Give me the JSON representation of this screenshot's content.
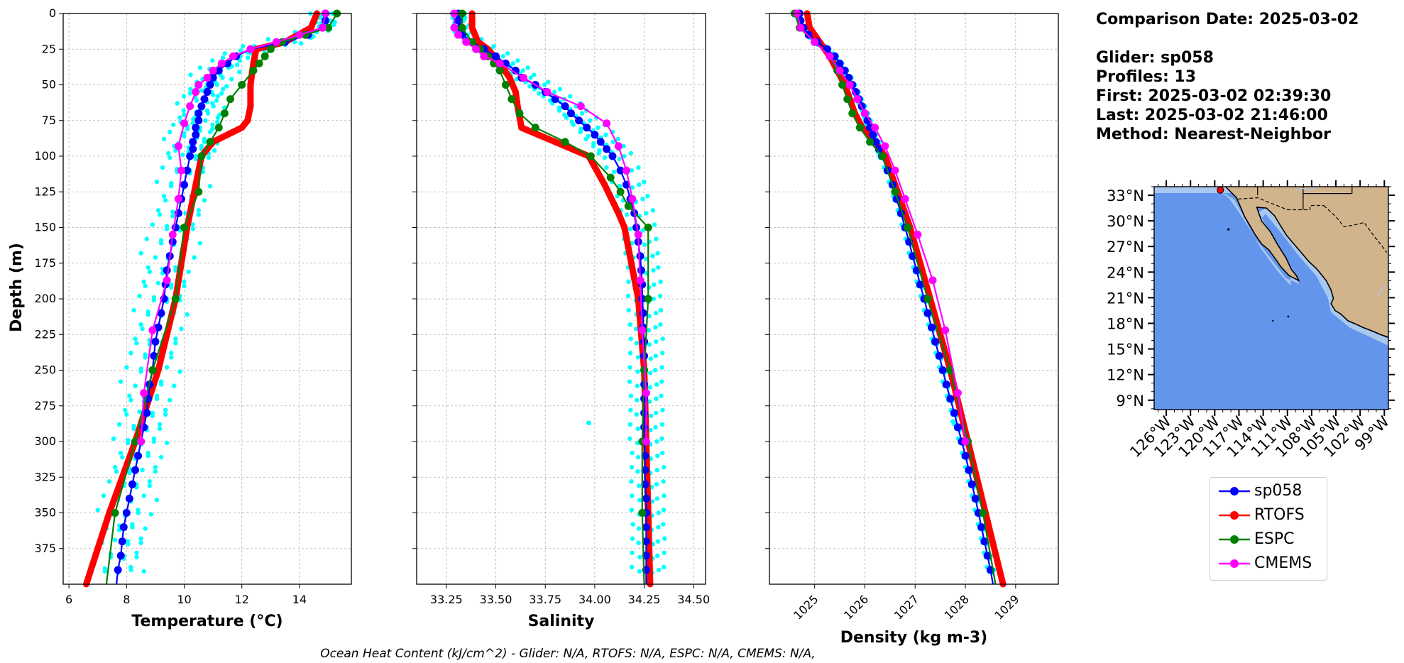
{
  "info": {
    "comparison_date": "Comparison Date: 2025-03-02",
    "glider": "Glider: sp058",
    "profiles": "Profiles: 13",
    "first": "First: 2025-03-02 02:39:30",
    "last": "Last: 2025-03-02 21:46:00",
    "method": "Method: Nearest-Neighbor"
  },
  "footer": "Ocean Heat Content (kJ/cm^2) - Glider: N/A,  RTOFS: N/A,  ESPC: N/A,  CMEMS: N/A,",
  "colors": {
    "glider": "#0000ff",
    "rtofs": "#ff0000",
    "espc": "#008000",
    "cmems": "#ff00ff",
    "raw": "#00ffff",
    "ocean": "#6495ed",
    "land": "#d2b48c",
    "shelf": "#a9c8ee"
  },
  "legend": [
    "sp058",
    "RTOFS",
    "ESPC",
    "CMEMS"
  ],
  "chart_data": [
    {
      "type": "line",
      "xlabel": "Temperature (°C)",
      "ylabel": "Depth (m)",
      "xlim": [
        5.8,
        15.8
      ],
      "ylim": [
        400,
        0
      ],
      "xticks": [
        6,
        8,
        10,
        12,
        14
      ],
      "xtick_labels": [
        "6",
        "8",
        "10",
        "12",
        "14"
      ],
      "yticks": [
        0,
        25,
        50,
        75,
        100,
        125,
        150,
        175,
        200,
        225,
        250,
        275,
        300,
        325,
        350,
        375
      ],
      "ytick_labels": [
        "0",
        "25",
        "50",
        "75",
        "100",
        "125",
        "150",
        "175",
        "200",
        "225",
        "250",
        "275",
        "300",
        "325",
        "350",
        "375"
      ],
      "series": [
        {
          "name": "RTOFS",
          "depth": [
            0,
            10,
            20,
            25,
            35,
            50,
            65,
            75,
            80,
            90,
            100,
            150,
            200,
            250,
            300,
            350,
            400
          ],
          "values": [
            14.6,
            14.4,
            13.5,
            12.5,
            12.4,
            12.3,
            12.3,
            12.2,
            12.0,
            11.0,
            10.6,
            10.1,
            9.7,
            9.1,
            8.3,
            7.4,
            6.6
          ]
        },
        {
          "name": "sp058",
          "depth": [
            0,
            5,
            10,
            15,
            20,
            25,
            30,
            35,
            40,
            45,
            50,
            55,
            60,
            65,
            70,
            75,
            80,
            85,
            90,
            95,
            100,
            110,
            120,
            130,
            140,
            150,
            160,
            170,
            180,
            190,
            200,
            210,
            220,
            230,
            240,
            250,
            260,
            270,
            280,
            290,
            300,
            310,
            320,
            330,
            340,
            350,
            360,
            370,
            380,
            390,
            400
          ],
          "values": [
            14.9,
            14.9,
            14.8,
            14.3,
            13.5,
            12.3,
            11.8,
            11.5,
            11.2,
            11.0,
            10.9,
            10.8,
            10.7,
            10.6,
            10.5,
            10.5,
            10.4,
            10.4,
            10.3,
            10.3,
            10.2,
            10.1,
            10.0,
            9.9,
            9.8,
            9.7,
            9.6,
            9.5,
            9.4,
            9.35,
            9.3,
            9.2,
            9.1,
            9.0,
            8.95,
            8.9,
            8.8,
            8.75,
            8.7,
            8.6,
            8.5,
            8.4,
            8.3,
            8.2,
            8.1,
            8.0,
            7.9,
            7.85,
            7.8,
            7.7,
            7.65
          ]
        },
        {
          "name": "ESPC",
          "depth": [
            0,
            10,
            15,
            20,
            25,
            30,
            35,
            40,
            50,
            60,
            70,
            80,
            90,
            100,
            125,
            150,
            200,
            250,
            300,
            350,
            400
          ],
          "values": [
            15.3,
            15.0,
            14.2,
            13.4,
            13.0,
            12.8,
            12.6,
            12.4,
            12.0,
            11.6,
            11.4,
            11.2,
            10.9,
            10.6,
            10.5,
            10.0,
            9.7,
            8.9,
            8.3,
            7.6,
            7.3
          ]
        },
        {
          "name": "CMEMS",
          "depth": [
            0,
            10,
            15,
            20,
            25,
            30,
            35,
            40,
            45,
            50,
            55,
            65,
            77,
            93,
            110,
            130,
            155,
            187,
            222,
            266,
            300
          ],
          "values": [
            14.9,
            14.8,
            14.0,
            13.2,
            12.3,
            11.7,
            11.3,
            11.0,
            10.8,
            10.5,
            10.4,
            10.2,
            10.0,
            9.8,
            9.9,
            9.8,
            9.6,
            9.4,
            8.9,
            8.6,
            8.5
          ]
        }
      ],
      "raw": {
        "name": "glider profiles",
        "offsets": [
          -0.8,
          -0.5,
          -0.25,
          0.0,
          0.25,
          0.5,
          0.75
        ]
      }
    },
    {
      "type": "line",
      "xlabel": "Salinity",
      "ylabel": "",
      "xlim": [
        33.1,
        34.56
      ],
      "ylim": [
        400,
        0
      ],
      "xticks": [
        33.25,
        33.5,
        33.75,
        34.0,
        34.25,
        34.5
      ],
      "xtick_labels": [
        "33.25",
        "33.50",
        "33.75",
        "34.00",
        "34.25",
        "34.50"
      ],
      "yticks": [
        0,
        25,
        50,
        75,
        100,
        125,
        150,
        175,
        200,
        225,
        250,
        275,
        300,
        325,
        350,
        375
      ],
      "series": [
        {
          "name": "RTOFS",
          "depth": [
            0,
            10,
            20,
            25,
            35,
            45,
            55,
            65,
            80,
            90,
            100,
            120,
            140,
            150,
            200,
            250,
            300,
            350,
            400
          ],
          "values": [
            33.38,
            33.38,
            33.41,
            33.46,
            33.52,
            33.57,
            33.6,
            33.61,
            33.63,
            33.8,
            33.97,
            34.05,
            34.12,
            34.15,
            34.22,
            34.25,
            34.26,
            34.27,
            34.28
          ]
        },
        {
          "name": "sp058",
          "depth": [
            0,
            5,
            10,
            15,
            20,
            25,
            30,
            35,
            40,
            45,
            50,
            55,
            60,
            65,
            70,
            75,
            80,
            85,
            90,
            95,
            100,
            110,
            120,
            130,
            140,
            150,
            160,
            170,
            180,
            190,
            200,
            210,
            220,
            230,
            240,
            250,
            260,
            270,
            280,
            290,
            300,
            310,
            320,
            330,
            340,
            350,
            360,
            370,
            380,
            390,
            400
          ],
          "values": [
            33.31,
            33.31,
            33.32,
            33.33,
            33.38,
            33.44,
            33.5,
            33.55,
            33.6,
            33.63,
            33.7,
            33.75,
            33.8,
            33.85,
            33.88,
            33.92,
            33.96,
            34.0,
            34.03,
            34.06,
            34.09,
            34.13,
            34.16,
            34.18,
            34.2,
            34.21,
            34.22,
            34.23,
            34.235,
            34.24,
            34.24,
            34.245,
            34.245,
            34.25,
            34.25,
            34.25,
            34.25,
            34.25,
            34.25,
            34.25,
            34.25,
            34.255,
            34.255,
            34.255,
            34.26,
            34.26,
            34.26,
            34.26,
            34.26,
            34.26,
            34.26
          ]
        },
        {
          "name": "ESPC",
          "depth": [
            0,
            10,
            20,
            25,
            30,
            35,
            40,
            50,
            60,
            70,
            80,
            90,
            100,
            115,
            125,
            135,
            150,
            200,
            250,
            300,
            350,
            400
          ],
          "values": [
            33.33,
            33.33,
            33.38,
            33.42,
            33.46,
            33.49,
            33.52,
            33.55,
            33.58,
            33.62,
            33.7,
            33.85,
            33.98,
            34.08,
            34.13,
            34.17,
            34.27,
            34.27,
            34.25,
            34.24,
            34.24,
            34.25
          ]
        },
        {
          "name": "CMEMS",
          "depth": [
            0,
            10,
            15,
            20,
            25,
            30,
            35,
            45,
            55,
            65,
            77,
            93,
            110,
            130,
            155,
            187,
            222,
            266,
            300
          ],
          "values": [
            33.29,
            33.29,
            33.31,
            33.35,
            33.4,
            33.44,
            33.52,
            33.64,
            33.76,
            33.93,
            34.06,
            34.12,
            34.16,
            34.19,
            34.22,
            34.23,
            34.24,
            34.26,
            34.26
          ]
        }
      ],
      "raw": {
        "name": "glider profiles",
        "offsets": [
          -0.07,
          -0.035,
          0.0,
          0.03,
          0.06,
          0.09
        ],
        "outlier": {
          "depth": 287,
          "value": 33.97
        }
      }
    },
    {
      "type": "line",
      "xlabel": "Density (kg m-3)",
      "ylabel": "",
      "xlim": [
        1024.1,
        1029.85
      ],
      "ylim": [
        400,
        0
      ],
      "xticks": [
        1025,
        1026,
        1027,
        1028,
        1029
      ],
      "xtick_labels": [
        "1025",
        "1026",
        "1027",
        "1028",
        "1029"
      ],
      "yticks": [
        0,
        25,
        50,
        75,
        100,
        125,
        150,
        175,
        200,
        225,
        250,
        275,
        300,
        325,
        350,
        375
      ],
      "series": [
        {
          "name": "RTOFS",
          "depth": [
            0,
            10,
            20,
            30,
            40,
            50,
            60,
            70,
            80,
            90,
            100,
            125,
            150,
            200,
            250,
            300,
            350,
            400
          ],
          "values": [
            1024.85,
            1024.9,
            1025.1,
            1025.3,
            1025.45,
            1025.6,
            1025.7,
            1025.8,
            1025.95,
            1026.2,
            1026.4,
            1026.65,
            1026.9,
            1027.3,
            1027.7,
            1028.05,
            1028.4,
            1028.75
          ]
        },
        {
          "name": "sp058",
          "depth": [
            0,
            5,
            10,
            15,
            20,
            25,
            30,
            35,
            40,
            45,
            50,
            55,
            60,
            65,
            70,
            75,
            80,
            85,
            90,
            95,
            100,
            110,
            120,
            130,
            140,
            150,
            160,
            170,
            180,
            190,
            200,
            210,
            220,
            230,
            240,
            250,
            260,
            270,
            280,
            290,
            300,
            310,
            320,
            330,
            340,
            350,
            360,
            370,
            380,
            390,
            400
          ],
          "values": [
            1024.7,
            1024.72,
            1024.78,
            1024.88,
            1025.05,
            1025.25,
            1025.4,
            1025.5,
            1025.6,
            1025.68,
            1025.75,
            1025.82,
            1025.88,
            1025.94,
            1026.0,
            1026.05,
            1026.1,
            1026.16,
            1026.22,
            1026.28,
            1026.34,
            1026.45,
            1026.55,
            1026.63,
            1026.72,
            1026.8,
            1026.88,
            1026.95,
            1027.03,
            1027.1,
            1027.18,
            1027.25,
            1027.33,
            1027.4,
            1027.48,
            1027.55,
            1027.62,
            1027.7,
            1027.78,
            1027.85,
            1027.93,
            1028.0,
            1028.07,
            1028.13,
            1028.2,
            1028.26,
            1028.32,
            1028.38,
            1028.44,
            1028.5,
            1028.55
          ]
        },
        {
          "name": "ESPC",
          "depth": [
            0,
            10,
            20,
            30,
            40,
            50,
            60,
            70,
            80,
            90,
            100,
            125,
            150,
            200,
            250,
            300,
            350,
            400
          ],
          "values": [
            1024.6,
            1024.7,
            1025.0,
            1025.3,
            1025.45,
            1025.55,
            1025.65,
            1025.75,
            1025.9,
            1026.1,
            1026.35,
            1026.6,
            1026.85,
            1027.25,
            1027.7,
            1028.05,
            1028.35,
            1028.6
          ]
        },
        {
          "name": "CMEMS",
          "depth": [
            0,
            10,
            20,
            30,
            40,
            50,
            60,
            70,
            80,
            93,
            110,
            130,
            155,
            187,
            222,
            266,
            300
          ],
          "values": [
            1024.65,
            1024.72,
            1025.0,
            1025.3,
            1025.5,
            1025.7,
            1025.85,
            1026.0,
            1026.2,
            1026.4,
            1026.6,
            1026.8,
            1027.05,
            1027.35,
            1027.6,
            1027.85,
            1028.0
          ]
        }
      ],
      "raw": {
        "name": "glider profiles",
        "offsets": [
          -0.07,
          -0.035,
          0.0,
          0.035,
          0.07
        ],
        "outlier": {
          "depth": 286,
          "value": 1027.75
        }
      }
    }
  ],
  "map": {
    "lat_labels": [
      "33°N",
      "30°N",
      "27°N",
      "24°N",
      "21°N",
      "18°N",
      "15°N",
      "12°N",
      "9°N"
    ],
    "lat_values": [
      33,
      30,
      27,
      24,
      21,
      18,
      15,
      12,
      9
    ],
    "lon_labels": [
      "126°W",
      "123°W",
      "120°W",
      "117°W",
      "114°W",
      "111°W",
      "108°W",
      "105°W",
      "102°W",
      "99°W"
    ],
    "lon_values": [
      -126,
      -123,
      -120,
      -117,
      -114,
      -111,
      -108,
      -105,
      -102,
      -99
    ],
    "extent": {
      "lon": [
        -127.5,
        -98.5
      ],
      "lat": [
        7.9,
        34
      ]
    },
    "glider_position": {
      "lon": -119.3,
      "lat": 33.6
    }
  }
}
